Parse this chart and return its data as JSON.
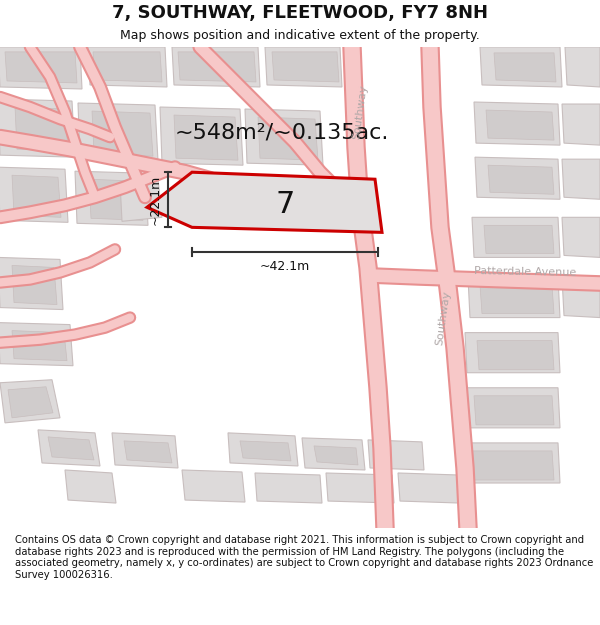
{
  "title": "7, SOUTHWAY, FLEETWOOD, FY7 8NH",
  "subtitle": "Map shows position and indicative extent of the property.",
  "footer": "Contains OS data © Crown copyright and database right 2021. This information is subject to Crown copyright and database rights 2023 and is reproduced with the permission of HM Land Registry. The polygons (including the associated geometry, namely x, y co-ordinates) are subject to Crown copyright and database rights 2023 Ordnance Survey 100026316.",
  "area_label": "~548m²/~0.135ac.",
  "width_label": "~42.1m",
  "height_label": "~22.1m",
  "property_number": "7",
  "map_bg": "#eeecec",
  "road_fill": "#f7c8c8",
  "road_edge": "#e89090",
  "building_fill": "#dddada",
  "building_edge": "#c8bebe",
  "inner_fill": "#d0cccc",
  "prop_fill": "#e2dfdf",
  "prop_edge": "#cc0000",
  "road_label_color": "#b0a8a8",
  "title_color": "#111111",
  "measure_color": "#333333",
  "title_fontsize": 13,
  "subtitle_fontsize": 9,
  "area_fontsize": 16,
  "number_fontsize": 22,
  "measure_fontsize": 9,
  "road_label_fontsize": 8
}
